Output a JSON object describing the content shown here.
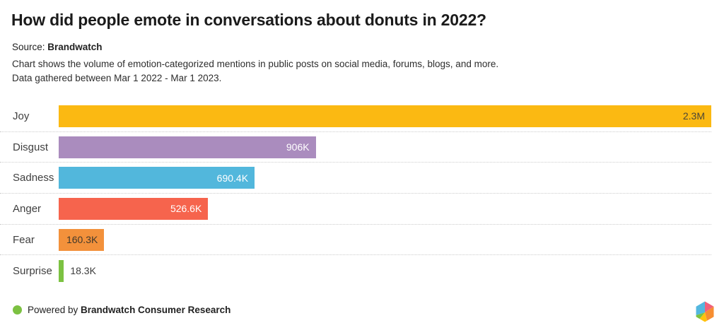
{
  "header": {
    "title": "How did people emote in conversations about donuts in 2022?",
    "source_prefix": "Source: ",
    "source_name": "Brandwatch",
    "description_line1": "Chart shows the volume of emotion-categorized mentions in public posts on social media, forums, blogs, and more.",
    "description_line2": "Data gathered between Mar 1 2022 - Mar 1 2023."
  },
  "chart_data": {
    "type": "bar",
    "orientation": "horizontal",
    "title": "How did people emote in conversations about donuts in 2022?",
    "categories": [
      "Joy",
      "Disgust",
      "Sadness",
      "Anger",
      "Fear",
      "Surprise"
    ],
    "values": [
      2300000,
      906000,
      690400,
      526600,
      160300,
      18300
    ],
    "value_labels": [
      "2.3M",
      "906K",
      "690.4K",
      "526.6K",
      "160.3K",
      "18.3K"
    ],
    "bar_colors": [
      "#fbb912",
      "#aa8cbe",
      "#52b7dc",
      "#f6644d",
      "#f3913b",
      "#7cc242"
    ],
    "value_label_colors": [
      "#4c4636",
      "#ffffff",
      "#ffffff",
      "#ffffff",
      "#42382a",
      "#3d3d3d"
    ],
    "value_label_placement": [
      "inside",
      "inside",
      "inside",
      "inside",
      "inside",
      "outside"
    ],
    "xlim": [
      0,
      2300000
    ],
    "xlabel": "",
    "ylabel": "",
    "legend": "none",
    "grid": "dotted horizontal row separators"
  },
  "footer": {
    "dot_color": "#7cc142",
    "powered_by_prefix": "Powered by ",
    "brand_name": "Brandwatch Consumer Research",
    "logo_name": "brandwatch-hexagon-logo",
    "logo_colors": {
      "blue": "#53b7df",
      "pink": "#f1607a",
      "orange": "#f78e31",
      "yellow": "#ffc20d",
      "green": "#7cc242"
    }
  }
}
